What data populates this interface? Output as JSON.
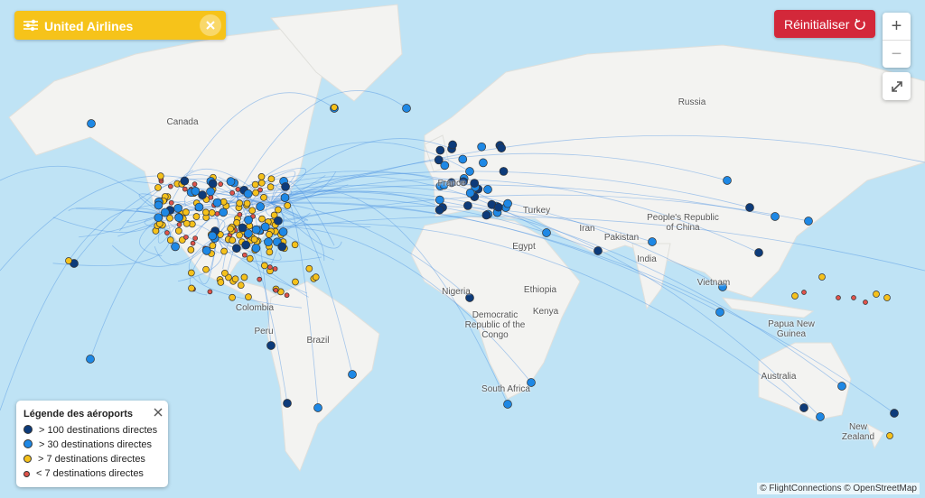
{
  "filter": {
    "label": "United Airlines"
  },
  "controls": {
    "reset": "Réinitialiser",
    "zoom_in": "+",
    "zoom_out": "−"
  },
  "legend": {
    "title": "Légende des aéroports",
    "items": [
      "> 100 destinations directes",
      "> 30 destinations directes",
      "> 7 destinations directes",
      "< 7 destinations directes"
    ]
  },
  "map_labels": [
    "Canada",
    "Russia",
    "France",
    "Turkey",
    "Iran",
    "Egypt",
    "Pakistan",
    "India",
    "People's Republic of China",
    "Vietnam",
    "Nigeria",
    "Ethiopia",
    "Democratic Republic of the Congo",
    "Kenya",
    "Papua New Guinea",
    "Colombia",
    "Peru",
    "Brazil",
    "South Africa",
    "Australia",
    "New Zealand"
  ],
  "attribution": "© FlightConnections © OpenStreetMap"
}
